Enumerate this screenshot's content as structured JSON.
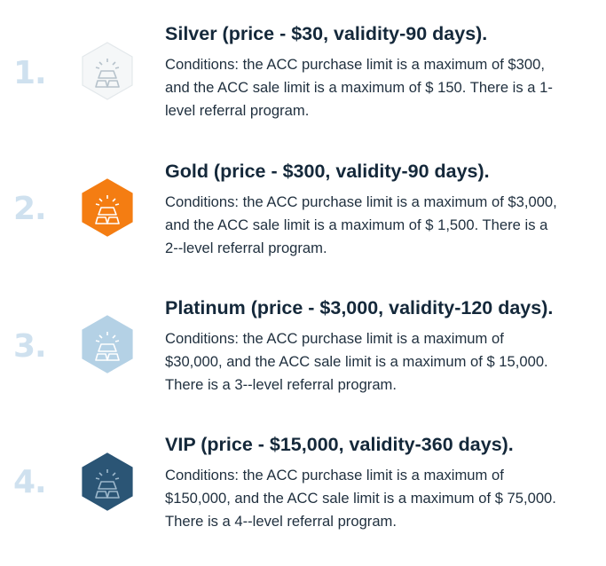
{
  "plans": [
    {
      "number": "1.",
      "title": "Silver (price - $30, validity-90 days).",
      "desc_lines": [
        "Conditions: the ACC purchase limit is a maximum of $300,",
        "and the ACC sale limit is a maximum of $ 150. There is a 1-",
        "level referral program."
      ],
      "icon": "gold-bars-icon",
      "badge_fill": "#f5f7f8",
      "badge_stroke": "#e3e8eb",
      "icon_color": "#b6c2cb"
    },
    {
      "number": "2.",
      "title": "Gold (price - $300, validity-90 days).",
      "desc_lines": [
        "Conditions: the ACC purchase limit is a maximum of $3,000,",
        "and the ACC sale limit is a maximum of $ 1,500. There is a",
        "2--level referral program."
      ],
      "icon": "gold-bars-icon",
      "badge_fill": "#f47d12",
      "badge_stroke": "#f47d12",
      "icon_color": "#ffffff"
    },
    {
      "number": "3.",
      "title": "Platinum (price - $3,000, validity-120 days).",
      "desc_lines": [
        "Conditions: the ACC purchase limit is a maximum of",
        "$30,000, and the ACC sale limit is a maximum of $ 15,000.",
        "There is a 3--level referral program."
      ],
      "icon": "gold-bars-icon",
      "badge_fill": "#b4d1e5",
      "badge_stroke": "#b4d1e5",
      "icon_color": "#ffffff"
    },
    {
      "number": "4.",
      "title": "VIP (price - $15,000, validity-360 days).",
      "desc_lines": [
        "Conditions: the ACC purchase limit is a maximum of",
        "$150,000, and the ACC sale limit is a maximum of $ 75,000.",
        "There is a 4--level referral program."
      ],
      "icon": "gold-bars-icon",
      "badge_fill": "#2b5575",
      "badge_stroke": "#2b5575",
      "icon_color": "#9db8cc"
    }
  ]
}
